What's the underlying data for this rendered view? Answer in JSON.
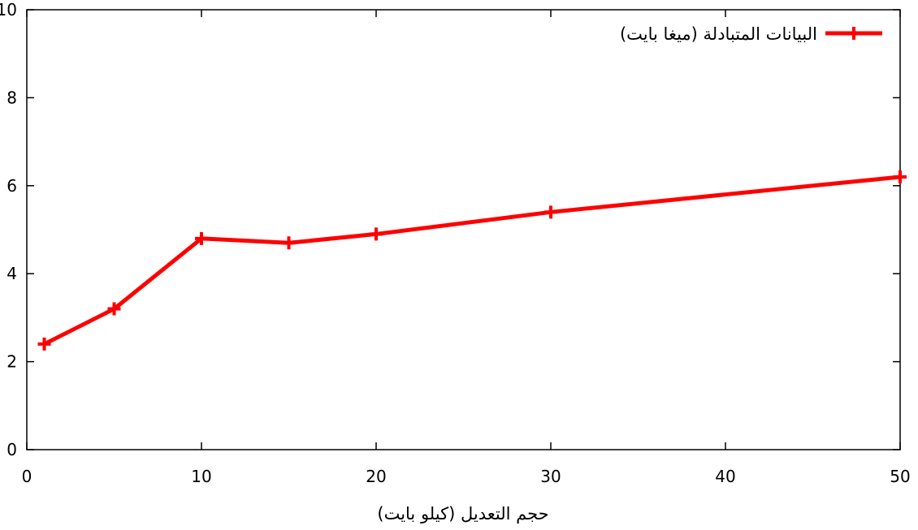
{
  "chart_data": {
    "type": "line",
    "title": "",
    "xlabel": "حجم التعديل (كيلو بايت)",
    "ylabel": "",
    "xlim": [
      0,
      50
    ],
    "ylim": [
      0,
      10
    ],
    "x_ticks": [
      "0",
      "10",
      "20",
      "30",
      "40",
      "50"
    ],
    "y_ticks": [
      "0",
      "2",
      "4",
      "6",
      "8",
      "10"
    ],
    "grid": false,
    "legend_position": "top-right",
    "series": [
      {
        "name": "البيانات المتبادلة (ميغا بايت)",
        "color": "#ff0000",
        "marker": "plus",
        "x": [
          1,
          5,
          10,
          15,
          20,
          30,
          50
        ],
        "y": [
          2.4,
          3.2,
          4.8,
          4.7,
          4.9,
          5.4,
          6.2
        ]
      }
    ]
  }
}
